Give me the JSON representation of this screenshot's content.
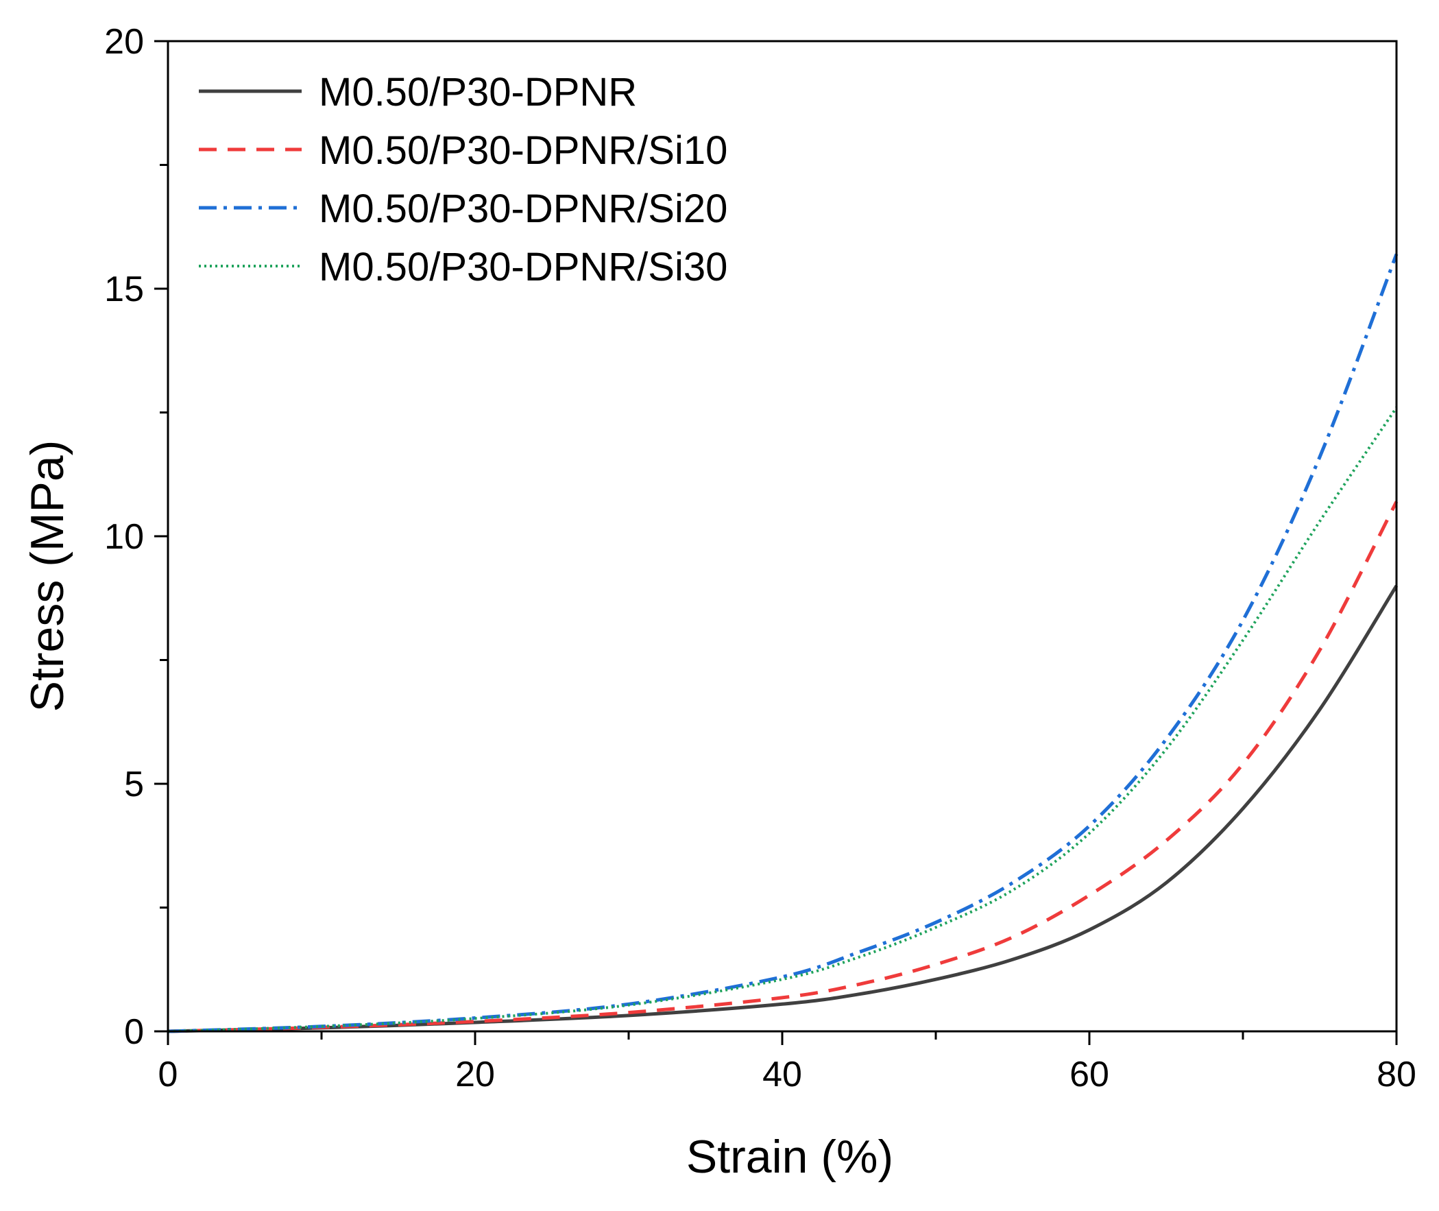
{
  "chart_data": {
    "type": "line",
    "title": "",
    "xlabel": "Strain (%)",
    "ylabel": "Stress (MPa)",
    "xlim": [
      0,
      80
    ],
    "ylim": [
      0,
      20
    ],
    "xticks": [
      0,
      20,
      40,
      60,
      80
    ],
    "yticks": [
      0,
      5,
      10,
      15,
      20
    ],
    "xtick_labels": [
      "0",
      "20",
      "40",
      "60",
      "80"
    ],
    "ytick_labels": [
      "0",
      "5",
      "10",
      "15",
      "20"
    ],
    "grid": false,
    "legend_position": "top-left",
    "series": [
      {
        "name": "M0.50/P30-DPNR",
        "color": "#404040",
        "dash": "solid",
        "x": [
          0,
          10,
          20,
          30,
          40,
          45,
          50,
          55,
          60,
          65,
          70,
          75,
          80
        ],
        "y": [
          0,
          0.07,
          0.18,
          0.32,
          0.55,
          0.75,
          1.05,
          1.45,
          2.05,
          3.0,
          4.5,
          6.5,
          9.0
        ]
      },
      {
        "name": "M0.50/P30-DPNR/Si10",
        "color": "#ef3b3b",
        "dash": "dashed",
        "x": [
          0,
          10,
          20,
          30,
          40,
          45,
          50,
          55,
          60,
          65,
          70,
          75,
          80
        ],
        "y": [
          0,
          0.08,
          0.2,
          0.38,
          0.68,
          0.95,
          1.35,
          1.9,
          2.75,
          3.85,
          5.4,
          7.7,
          10.7
        ]
      },
      {
        "name": "M0.50/P30-DPNR/Si20",
        "color": "#1f6fd6",
        "dash": "dashdot",
        "x": [
          0,
          10,
          20,
          30,
          40,
          45,
          50,
          55,
          60,
          65,
          70,
          75,
          80
        ],
        "y": [
          0,
          0.1,
          0.27,
          0.55,
          1.1,
          1.6,
          2.2,
          3.0,
          4.15,
          5.9,
          8.3,
          11.6,
          15.7
        ]
      },
      {
        "name": "M0.50/P30-DPNR/Si30",
        "color": "#1fa35c",
        "dash": "dotted",
        "x": [
          0,
          10,
          20,
          30,
          40,
          45,
          50,
          55,
          60,
          65,
          70,
          75,
          80
        ],
        "y": [
          0,
          0.1,
          0.26,
          0.53,
          1.05,
          1.5,
          2.1,
          2.85,
          4.0,
          5.7,
          7.9,
          10.3,
          12.6
        ]
      }
    ]
  }
}
